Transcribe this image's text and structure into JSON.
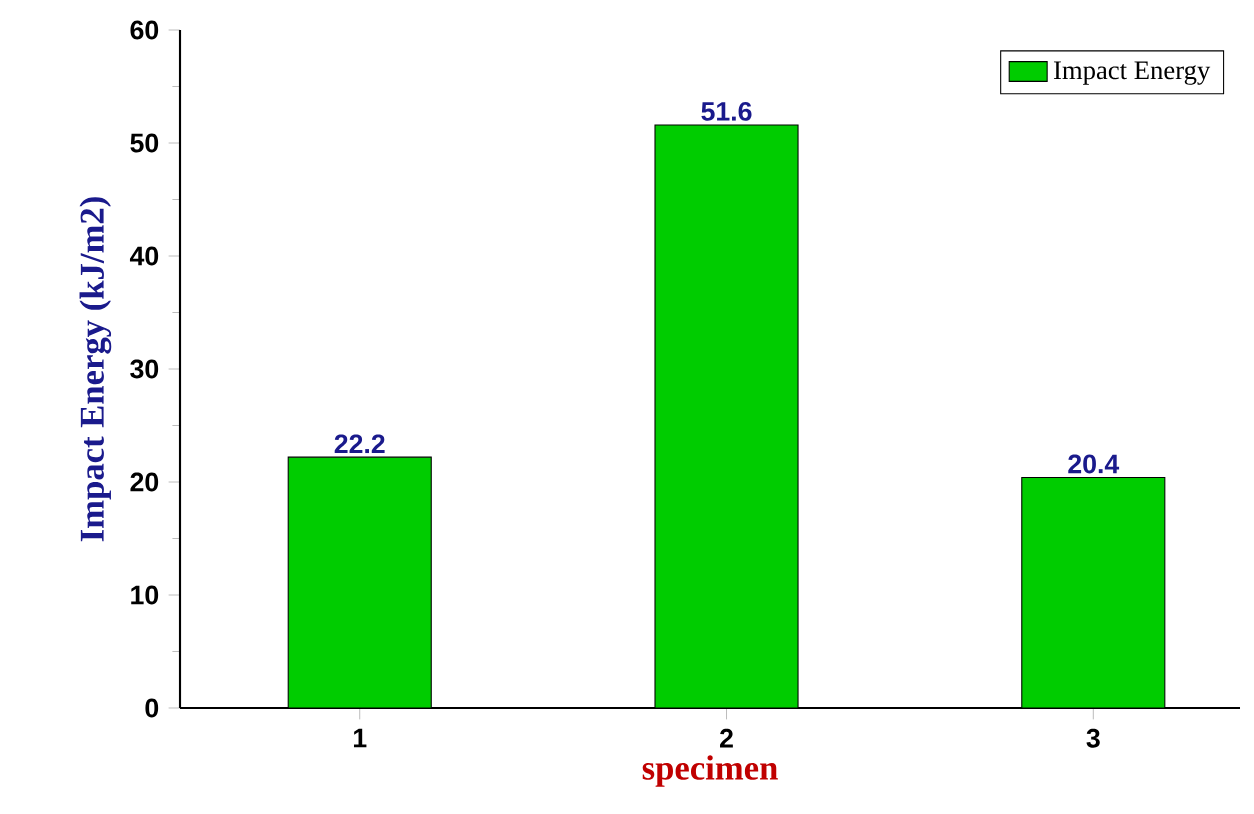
{
  "chart_data": {
    "type": "bar",
    "xlabel": "specimen",
    "ylabel": "Impact Energy (kJ/m2)",
    "categories": [
      "1",
      "2",
      "3"
    ],
    "series": [
      {
        "name": "Impact Energy",
        "color": "#00cc00",
        "values": [
          22.2,
          51.6,
          20.4
        ]
      }
    ],
    "ylim": [
      0,
      60
    ],
    "yticks": [
      0,
      10,
      20,
      30,
      40,
      50,
      60
    ],
    "data_labels": true,
    "legend": "top right",
    "grid": false
  }
}
